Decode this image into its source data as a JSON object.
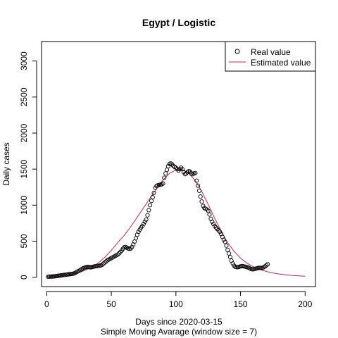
{
  "chart_data": {
    "type": "scatter",
    "title": "Egypt / Logistic",
    "xlabel": "Days since 2020-03-15",
    "subtitle": "Simple Moving Avarage (window size = 7)",
    "ylabel": "Daily cases",
    "xlim": [
      -4,
      208
    ],
    "ylim": [
      -130,
      3270
    ],
    "xticks": [
      0,
      50,
      100,
      150,
      200
    ],
    "yticks": [
      0,
      500,
      1000,
      1500,
      2000,
      2500,
      3000
    ],
    "legend_position": "top-right",
    "series": [
      {
        "name": "Real value",
        "kind": "points",
        "color": "#000000",
        "points": [
          [
            1,
            8
          ],
          [
            2,
            9
          ],
          [
            3,
            9
          ],
          [
            4,
            10
          ],
          [
            5,
            11
          ],
          [
            6,
            13
          ],
          [
            7,
            15
          ],
          [
            8,
            17
          ],
          [
            9,
            20
          ],
          [
            10,
            22
          ],
          [
            11,
            25
          ],
          [
            12,
            27
          ],
          [
            13,
            30
          ],
          [
            14,
            33
          ],
          [
            15,
            36
          ],
          [
            16,
            38
          ],
          [
            17,
            40
          ],
          [
            18,
            43
          ],
          [
            19,
            45
          ],
          [
            20,
            48
          ],
          [
            21,
            52
          ],
          [
            22,
            60
          ],
          [
            23,
            70
          ],
          [
            24,
            80
          ],
          [
            25,
            90
          ],
          [
            26,
            100
          ],
          [
            27,
            112
          ],
          [
            28,
            122
          ],
          [
            29,
            130
          ],
          [
            30,
            138
          ],
          [
            31,
            142
          ],
          [
            32,
            145
          ],
          [
            33,
            140
          ],
          [
            34,
            138
          ],
          [
            35,
            140
          ],
          [
            36,
            145
          ],
          [
            37,
            150
          ],
          [
            38,
            152
          ],
          [
            39,
            155
          ],
          [
            40,
            158
          ],
          [
            41,
            160
          ],
          [
            42,
            165
          ],
          [
            43,
            175
          ],
          [
            44,
            190
          ],
          [
            45,
            205
          ],
          [
            46,
            220
          ],
          [
            47,
            235
          ],
          [
            48,
            245
          ],
          [
            49,
            255
          ],
          [
            50,
            265
          ],
          [
            51,
            275
          ],
          [
            52,
            285
          ],
          [
            53,
            295
          ],
          [
            54,
            305
          ],
          [
            55,
            315
          ],
          [
            56,
            330
          ],
          [
            57,
            350
          ],
          [
            58,
            370
          ],
          [
            59,
            395
          ],
          [
            60,
            415
          ],
          [
            61,
            420
          ],
          [
            62,
            410
          ],
          [
            63,
            400
          ],
          [
            64,
            395
          ],
          [
            65,
            398
          ],
          [
            66,
            420
          ],
          [
            67,
            455
          ],
          [
            68,
            495
          ],
          [
            69,
            540
          ],
          [
            70,
            590
          ],
          [
            71,
            630
          ],
          [
            72,
            660
          ],
          [
            73,
            690
          ],
          [
            74,
            710
          ],
          [
            75,
            740
          ],
          [
            76,
            770
          ],
          [
            77,
            800
          ],
          [
            78,
            860
          ],
          [
            79,
            930
          ],
          [
            80,
            1000
          ],
          [
            81,
            1060
          ],
          [
            82,
            1110
          ],
          [
            83,
            1170
          ],
          [
            84,
            1240
          ],
          [
            85,
            1265
          ],
          [
            86,
            1275
          ],
          [
            87,
            1280
          ],
          [
            88,
            1285
          ],
          [
            89,
            1290
          ],
          [
            90,
            1300
          ],
          [
            91,
            1380
          ],
          [
            92,
            1440
          ],
          [
            93,
            1490
          ],
          [
            94,
            1540
          ],
          [
            95,
            1570
          ],
          [
            96,
            1580
          ],
          [
            97,
            1565
          ],
          [
            98,
            1545
          ],
          [
            99,
            1530
          ],
          [
            100,
            1520
          ],
          [
            101,
            1500
          ],
          [
            102,
            1480
          ],
          [
            103,
            1500
          ],
          [
            104,
            1520
          ],
          [
            105,
            1500
          ],
          [
            106,
            1460
          ],
          [
            107,
            1430
          ],
          [
            108,
            1440
          ],
          [
            109,
            1460
          ],
          [
            110,
            1470
          ],
          [
            111,
            1465
          ],
          [
            112,
            1440
          ],
          [
            113,
            1430
          ],
          [
            114,
            1440
          ],
          [
            115,
            1445
          ],
          [
            116,
            1340
          ],
          [
            117,
            1270
          ],
          [
            118,
            1200
          ],
          [
            119,
            1120
          ],
          [
            120,
            1050
          ],
          [
            121,
            990
          ],
          [
            122,
            960
          ],
          [
            123,
            950
          ],
          [
            124,
            940
          ],
          [
            125,
            920
          ],
          [
            126,
            870
          ],
          [
            127,
            810
          ],
          [
            128,
            770
          ],
          [
            129,
            740
          ],
          [
            130,
            710
          ],
          [
            131,
            690
          ],
          [
            132,
            670
          ],
          [
            133,
            650
          ],
          [
            134,
            630
          ],
          [
            135,
            600
          ],
          [
            136,
            560
          ],
          [
            137,
            520
          ],
          [
            138,
            490
          ],
          [
            139,
            440
          ],
          [
            140,
            380
          ],
          [
            141,
            330
          ],
          [
            142,
            280
          ],
          [
            143,
            230
          ],
          [
            144,
            190
          ],
          [
            145,
            160
          ],
          [
            146,
            145
          ],
          [
            147,
            140
          ],
          [
            148,
            140
          ],
          [
            149,
            145
          ],
          [
            150,
            150
          ],
          [
            151,
            155
          ],
          [
            152,
            152
          ],
          [
            153,
            148
          ],
          [
            154,
            145
          ],
          [
            155,
            140
          ],
          [
            156,
            135
          ],
          [
            157,
            125
          ],
          [
            158,
            115
          ],
          [
            159,
            110
          ],
          [
            160,
            110
          ],
          [
            161,
            115
          ],
          [
            162,
            120
          ],
          [
            163,
            125
          ],
          [
            164,
            130
          ],
          [
            165,
            130
          ],
          [
            166,
            128
          ],
          [
            167,
            130
          ],
          [
            168,
            140
          ],
          [
            169,
            150
          ],
          [
            170,
            165
          ],
          [
            171,
            180
          ]
        ]
      },
      {
        "name": "Estimated value",
        "kind": "line",
        "color": "#cd2650",
        "points": [
          [
            0,
            7
          ],
          [
            5,
            11
          ],
          [
            10,
            18
          ],
          [
            15,
            28
          ],
          [
            20,
            43
          ],
          [
            25,
            65
          ],
          [
            30,
            97
          ],
          [
            35,
            141
          ],
          [
            40,
            200
          ],
          [
            45,
            276
          ],
          [
            50,
            372
          ],
          [
            55,
            483
          ],
          [
            60,
            580
          ],
          [
            65,
            700
          ],
          [
            70,
            830
          ],
          [
            75,
            965
          ],
          [
            80,
            1100
          ],
          [
            85,
            1230
          ],
          [
            90,
            1350
          ],
          [
            95,
            1440
          ],
          [
            100,
            1490
          ],
          [
            105,
            1490
          ],
          [
            110,
            1440
          ],
          [
            115,
            1340
          ],
          [
            120,
            1190
          ],
          [
            125,
            1010
          ],
          [
            130,
            820
          ],
          [
            135,
            640
          ],
          [
            140,
            480
          ],
          [
            145,
            360
          ],
          [
            150,
            265
          ],
          [
            155,
            195
          ],
          [
            160,
            145
          ],
          [
            165,
            108
          ],
          [
            170,
            80
          ],
          [
            175,
            60
          ],
          [
            180,
            45
          ],
          [
            185,
            34
          ],
          [
            190,
            25
          ],
          [
            195,
            19
          ],
          [
            200,
            14
          ]
        ]
      }
    ]
  }
}
